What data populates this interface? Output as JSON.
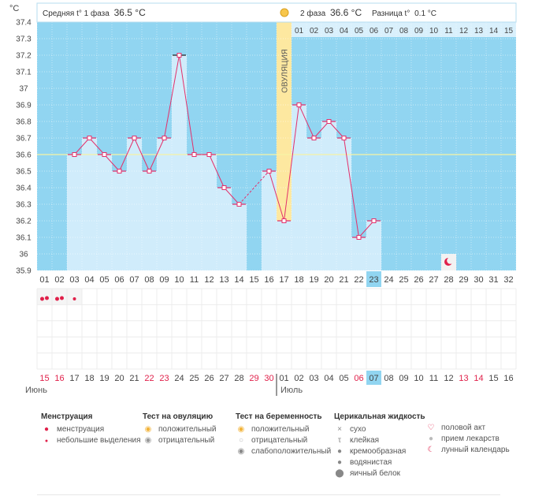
{
  "header": {
    "unit": "°C",
    "phase1_label": "Средняя t° 1 фаза",
    "phase1_value": "36.5 °C",
    "phase2_label": "2 фаза",
    "phase2_value": "36.6 °C",
    "diff_label": "Разница t°",
    "diff_value": "0.1 °C"
  },
  "ovulation_label": "ОВУЛЯЦИЯ",
  "top_day_labels": [
    "01",
    "02",
    "03",
    "04",
    "05",
    "06",
    "07",
    "08",
    "09",
    "10",
    "11",
    "12",
    "13",
    "14",
    "15"
  ],
  "cycle_days": [
    "01",
    "02",
    "03",
    "04",
    "05",
    "06",
    "07",
    "08",
    "09",
    "10",
    "11",
    "12",
    "13",
    "14",
    "15",
    "16",
    "17",
    "18",
    "19",
    "20",
    "21",
    "22",
    "23",
    "24",
    "25",
    "26",
    "27",
    "28",
    "29",
    "30",
    "31",
    "32"
  ],
  "dates": [
    "15",
    "16",
    "17",
    "18",
    "19",
    "20",
    "21",
    "22",
    "23",
    "24",
    "25",
    "26",
    "27",
    "28",
    "29",
    "30",
    "01",
    "02",
    "03",
    "04",
    "05",
    "06",
    "07",
    "08",
    "09",
    "10",
    "11",
    "12",
    "13",
    "14",
    "15",
    "16"
  ],
  "date_colors": [
    "#e0204a",
    "#e0204a",
    "#444",
    "#444",
    "#444",
    "#444",
    "#444",
    "#e0204a",
    "#e0204a",
    "#444",
    "#444",
    "#444",
    "#444",
    "#444",
    "#e0204a",
    "#e0204a",
    "#444",
    "#444",
    "#444",
    "#444",
    "#444",
    "#e0204a",
    "#444",
    "#444",
    "#444",
    "#444",
    "#444",
    "#444",
    "#e0204a",
    "#e0204a",
    "#444",
    "#444"
  ],
  "month1": "Июнь",
  "month2": "Июль",
  "chart_data": {
    "type": "line",
    "x": [
      1,
      2,
      3,
      4,
      5,
      6,
      7,
      8,
      9,
      10,
      11,
      12,
      13,
      14,
      15,
      16,
      17,
      18,
      19,
      20,
      21,
      22,
      23,
      24,
      25,
      26,
      27,
      28,
      29,
      30,
      31,
      32
    ],
    "series": [
      {
        "values": [
          null,
          null,
          36.6,
          36.7,
          36.6,
          36.5,
          36.7,
          36.5,
          36.7,
          37.2,
          36.6,
          36.6,
          36.4,
          36.3,
          null,
          36.5,
          36.2,
          36.9,
          36.7,
          36.8,
          36.7,
          36.1,
          36.2,
          null,
          null,
          null,
          null,
          null,
          null,
          null,
          null,
          null
        ]
      }
    ],
    "ylim": [
      35.9,
      37.4
    ],
    "yticks": [
      "35.9",
      "36",
      "36.1",
      "36.2",
      "36.3",
      "36.4",
      "36.5",
      "36.6",
      "36.7",
      "36.8",
      "36.9",
      "37",
      "37.1",
      "37.2",
      "37.3",
      "37.4"
    ],
    "coverline": 36.6,
    "ovulation_day": 17,
    "current_day": 23,
    "menstruation_days": [
      1,
      2,
      3
    ],
    "moon_day": 28,
    "colors": {
      "sky": "#91d5f1",
      "bar": "#d0ecfb",
      "line": "#e3306b",
      "ovulation": "#fde8a0",
      "current": "#91d5f1"
    }
  },
  "legend": {
    "menstruation": {
      "title": "Менструация",
      "items": [
        "менструация",
        "небольшие выделения"
      ]
    },
    "ovulation_test": {
      "title": "Тест на овуляцию",
      "items": [
        "положительный",
        "отрицательный"
      ]
    },
    "pregnancy_test": {
      "title": "Тест на беременность",
      "items": [
        "положительный",
        "отрицательный",
        "слабоположительный"
      ]
    },
    "cervical": {
      "title": "Церикальная жидкость",
      "items": [
        "сухо",
        "клейкая",
        "кремообразная",
        "водянистая",
        "яичный белок"
      ]
    },
    "other": {
      "items": [
        "половой акт",
        "прием лекарств",
        "лунный календарь"
      ]
    }
  }
}
